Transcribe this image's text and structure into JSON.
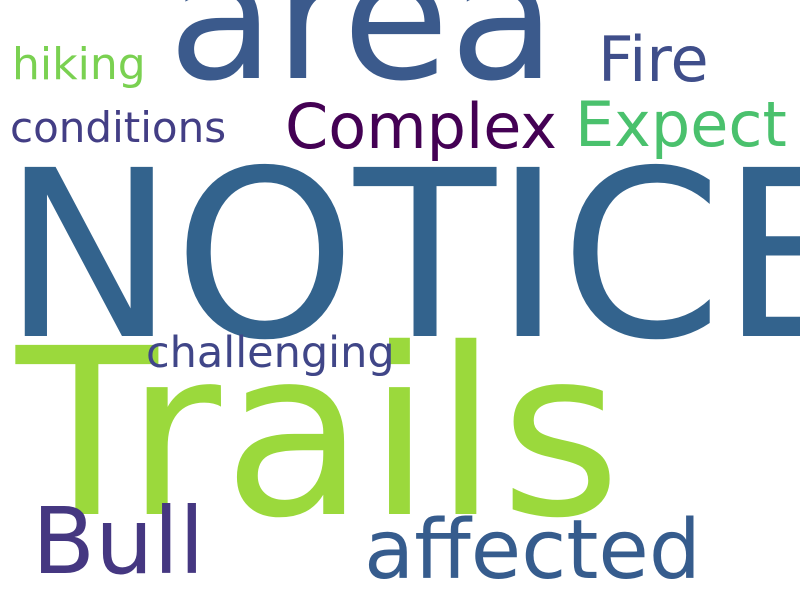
{
  "words": [
    {
      "key": "area",
      "text": "area",
      "color": "#3b5a8c"
    },
    {
      "key": "notice",
      "text": "NOTICE",
      "color": "#33638d"
    },
    {
      "key": "trails",
      "text": "Trails",
      "color": "#9bd93c"
    },
    {
      "key": "hiking",
      "text": "hiking",
      "color": "#7ad151"
    },
    {
      "key": "fire",
      "text": "Fire",
      "color": "#3f4e8a"
    },
    {
      "key": "conditions",
      "text": "conditions",
      "color": "#433e85"
    },
    {
      "key": "complex",
      "text": "Complex",
      "color": "#440154"
    },
    {
      "key": "expect",
      "text": "Expect",
      "color": "#4ac16d"
    },
    {
      "key": "challenging",
      "text": "challenging",
      "color": "#404688"
    },
    {
      "key": "bull",
      "text": "Bull",
      "color": "#453781"
    },
    {
      "key": "affected",
      "text": "affected",
      "color": "#365c8d"
    }
  ]
}
